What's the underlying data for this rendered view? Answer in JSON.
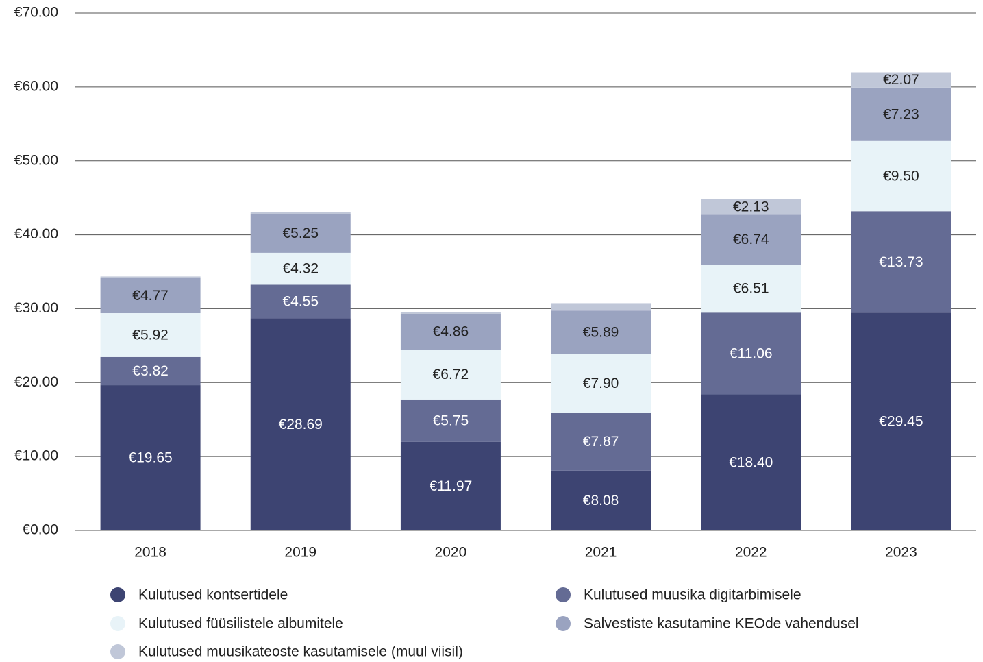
{
  "chart_data": {
    "type": "stacked_bar",
    "categories": [
      "2018",
      "2019",
      "2020",
      "2021",
      "2022",
      "2023"
    ],
    "series": [
      {
        "name": "Kulutused kontsertidele",
        "color": "#3d4472",
        "values": [
          19.65,
          28.69,
          11.97,
          8.08,
          18.4,
          29.45
        ],
        "value_labels": [
          "€19.65",
          "€28.69",
          "€11.97",
          "€8.08",
          "€18.40",
          "€29.45"
        ]
      },
      {
        "name": "Kulutused muusika digitarbimisele",
        "color": "#646b94",
        "values": [
          3.82,
          4.55,
          5.75,
          7.87,
          11.06,
          13.73
        ],
        "value_labels": [
          "€3.82",
          "€4.55",
          "€5.75",
          "€7.87",
          "€11.06",
          "€13.73"
        ]
      },
      {
        "name": "Kulutused füüsilistele albumitele",
        "color": "#e8f3f8",
        "values": [
          5.92,
          4.32,
          6.72,
          7.9,
          6.51,
          9.5
        ],
        "value_labels": [
          "€5.92",
          "€4.32",
          "€6.72",
          "€7.90",
          "€6.51",
          "€9.50"
        ]
      },
      {
        "name": "Salvestiste kasutamine KEOde vahendusel",
        "color": "#9aa3c0",
        "values": [
          4.77,
          5.25,
          4.86,
          5.89,
          6.74,
          7.23
        ],
        "value_labels": [
          "€4.77",
          "€5.25",
          "€4.86",
          "€5.89",
          "€6.74",
          "€7.23"
        ]
      },
      {
        "name": "Kulutused muusikateoste kasutamisele (muul viisil)",
        "color": "#c0c7d8",
        "values": [
          0.2,
          0.3,
          0.2,
          1.0,
          2.13,
          2.07
        ],
        "value_labels": [
          null,
          null,
          null,
          null,
          "€2.13",
          "€2.07"
        ]
      }
    ],
    "ylim": [
      0,
      70
    ],
    "yticks": [
      {
        "value": 0,
        "label": "€0.00"
      },
      {
        "value": 10,
        "label": "€10.00"
      },
      {
        "value": 20,
        "label": "€20.00"
      },
      {
        "value": 30,
        "label": "€30.00"
      },
      {
        "value": 40,
        "label": "€40.00"
      },
      {
        "value": 50,
        "label": "€50.00"
      },
      {
        "value": 60,
        "label": "€60.00"
      },
      {
        "value": 70,
        "label": "€70.00"
      }
    ],
    "grid": true
  }
}
